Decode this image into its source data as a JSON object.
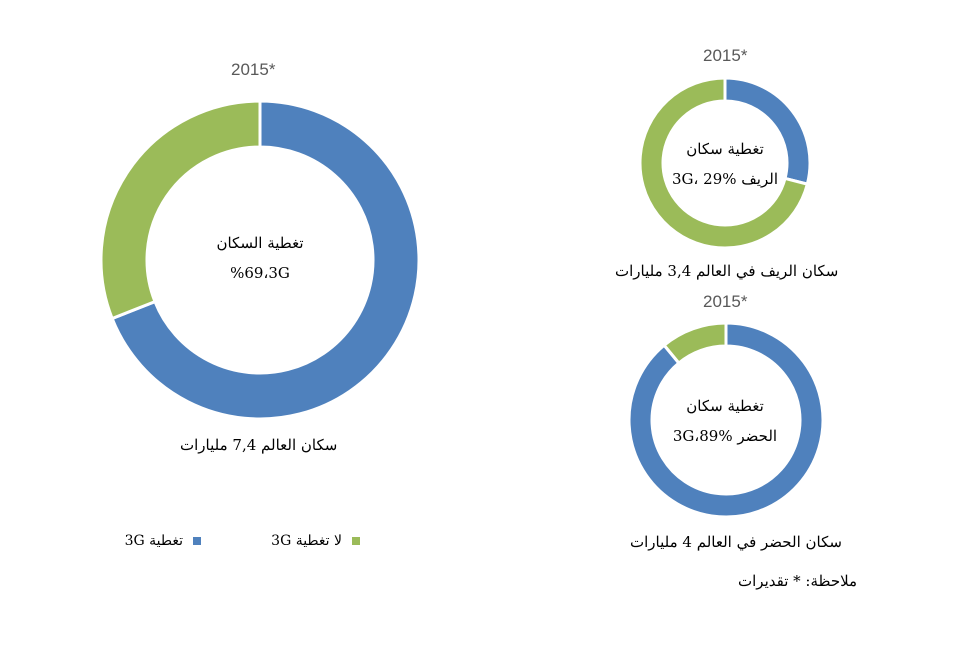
{
  "colors": {
    "coverage": "#4F81BD",
    "no_coverage": "#9BBB59"
  },
  "legend": {
    "coverage_label": "تغطية 3G",
    "no_coverage_label": "لا تغطية 3G"
  },
  "note": "ملاحظة: * تقديرات",
  "chart_data": [
    {
      "type": "donut",
      "id": "world",
      "year_label": "2015*",
      "center_line1": "تغطية السكان",
      "center_line2": "%69،3G",
      "caption": "سكان العالم 7,4 مليارات",
      "series": [
        {
          "name": "تغطية 3G",
          "value": 69
        },
        {
          "name": "لا تغطية 3G",
          "value": 31
        }
      ]
    },
    {
      "type": "donut",
      "id": "rural",
      "year_label": "2015*",
      "center_line1": "تغطية سكان",
      "center_line2": "الريف 3G، 29%",
      "caption": "سكان الريف في العالم 3,4 مليارات",
      "series": [
        {
          "name": "تغطية 3G",
          "value": 29
        },
        {
          "name": "لا تغطية 3G",
          "value": 71
        }
      ]
    },
    {
      "type": "donut",
      "id": "urban",
      "year_label": "2015*",
      "center_line1": "تغطية سكان",
      "center_line2": "الحضر 3G،89%",
      "caption": "سكان الحضر في العالم 4 مليارات",
      "series": [
        {
          "name": "تغطية 3G",
          "value": 89
        },
        {
          "name": "لا تغطية 3G",
          "value": 11
        }
      ]
    }
  ]
}
